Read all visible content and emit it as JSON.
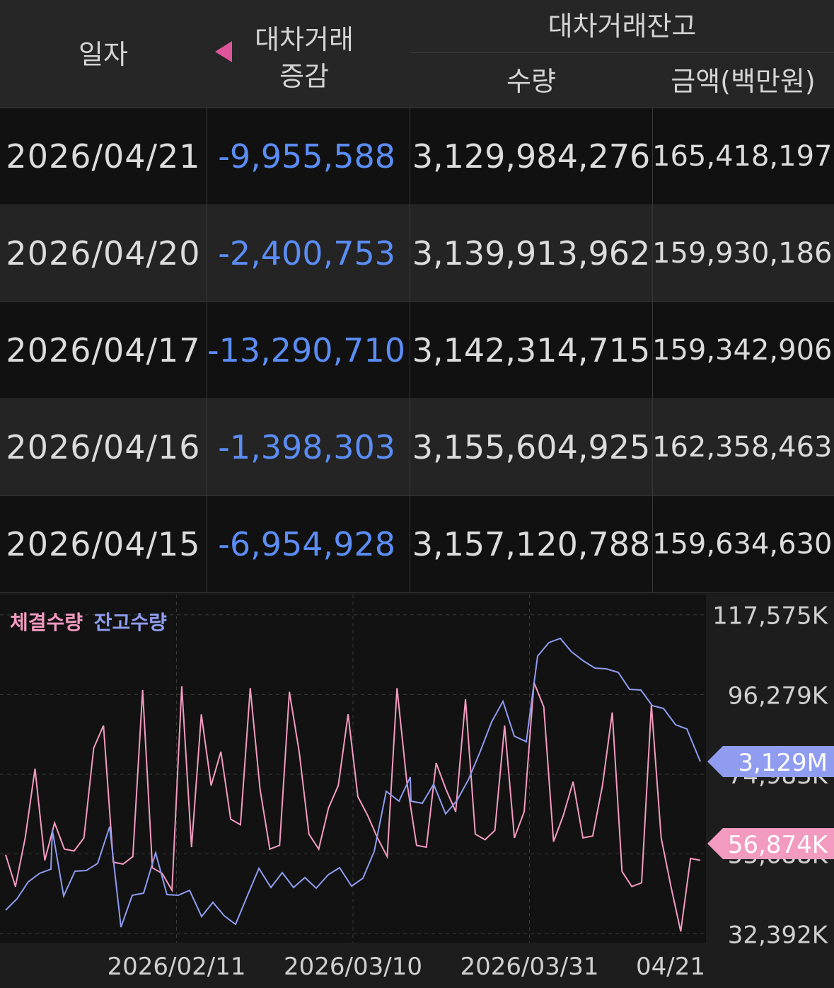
{
  "table": {
    "headers": {
      "date": "일자",
      "change_line1": "대차거래",
      "change_line2": "증감",
      "balance": "대차거래잔고",
      "quantity": "수량",
      "amount": "금액(백만원)"
    },
    "rows": [
      {
        "date": "2026/04/21",
        "change": "-9,955,588",
        "quantity": "3,129,984,276",
        "amount": "165,418,197"
      },
      {
        "date": "2026/04/20",
        "change": "-2,400,753",
        "quantity": "3,139,913,962",
        "amount": "159,930,186"
      },
      {
        "date": "2026/04/17",
        "change": "-13,290,710",
        "quantity": "3,142,314,715",
        "amount": "159,342,906"
      },
      {
        "date": "2026/04/16",
        "change": "-1,398,303",
        "quantity": "3,155,604,925",
        "amount": "162,358,463"
      },
      {
        "date": "2026/04/15",
        "change": "-6,954,928",
        "quantity": "3,157,120,788",
        "amount": "159,634,630"
      }
    ]
  },
  "chart": {
    "legend": {
      "executed": "체결수량",
      "balance": "잔고수량"
    },
    "balance_tag": "3,129M",
    "executed_tag": "56,874K",
    "colors": {
      "executed": "#f39ac1",
      "balance": "#8f9cf0",
      "tag_executed": "#f29ac0",
      "tag_balance": "#8f9cf0"
    }
  },
  "chart_data": {
    "type": "line",
    "x_tick_labels": [
      "2026/02/11",
      "2026/03/10",
      "2026/03/31",
      "04/21"
    ],
    "y_tick_labels": [
      "117,575K",
      "96,279K",
      "74,983K",
      "53,688K",
      "32,392K"
    ],
    "y_ticks": [
      117575,
      96279,
      74983,
      53688,
      32392
    ],
    "ylim": [
      30000,
      123000
    ],
    "series": [
      {
        "name": "체결수량",
        "axis": "left",
        "values": [
          53500,
          45000,
          58000,
          76500,
          52000,
          62000,
          55000,
          54500,
          58000,
          82000,
          88000,
          51500,
          51000,
          53000,
          97500,
          50000,
          48500,
          44000,
          98500,
          55500,
          91000,
          72000,
          81000,
          63000,
          61500,
          98000,
          71000,
          55000,
          56000,
          97000,
          81000,
          59000,
          55000,
          66000,
          72000,
          91000,
          69000,
          64000,
          58000,
          53000,
          98000,
          73000,
          56000,
          55500,
          78000,
          71000,
          65000,
          95000,
          59000,
          57500,
          60000,
          88000,
          58000,
          65000,
          99500,
          93000,
          57000,
          64000,
          73000,
          58000,
          58500,
          72000,
          91500,
          49000,
          45000,
          46000,
          93500,
          58000,
          45000,
          33000,
          52500,
          52000
        ]
      },
      {
        "name": "잔고수량",
        "axis": "right"
      }
    ]
  }
}
